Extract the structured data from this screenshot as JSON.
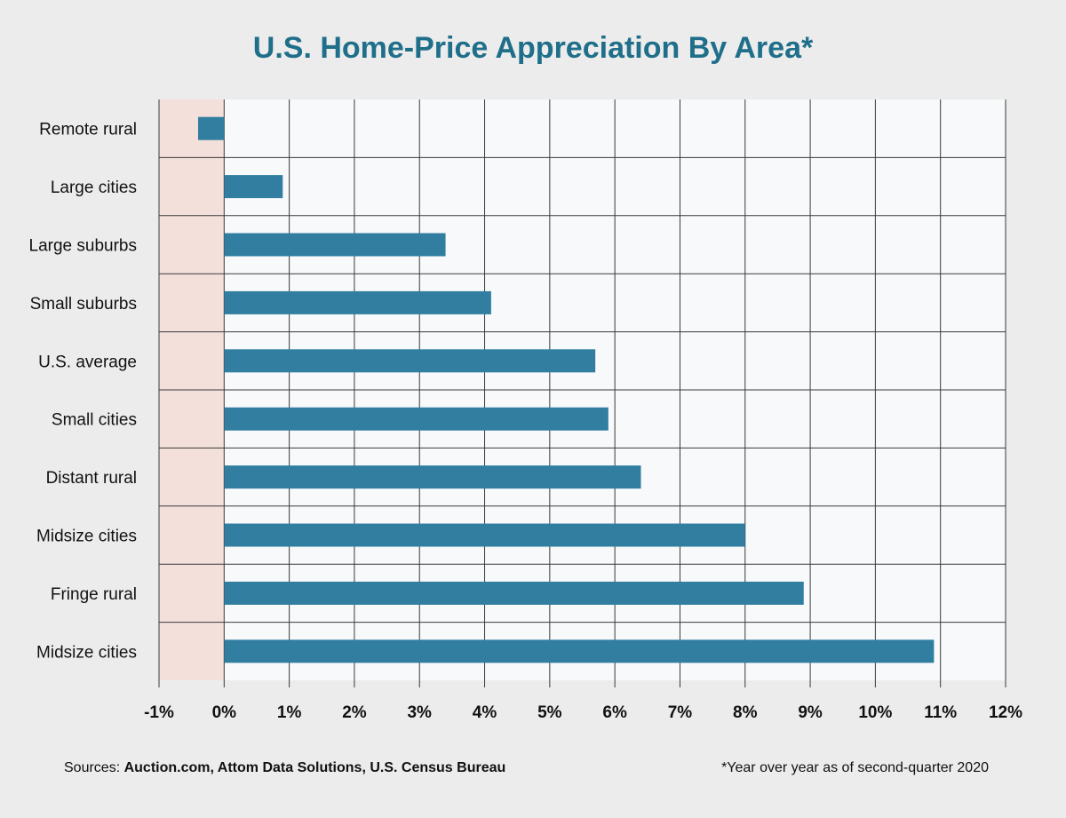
{
  "chart_data": {
    "type": "bar",
    "orientation": "horizontal",
    "title": "U.S. Home-Price Appreciation By Area*",
    "categories": [
      "Remote rural",
      "Large cities",
      "Large suburbs",
      "Small suburbs",
      "U.S. average",
      "Small cities",
      "Distant rural",
      "Midsize cities",
      "Fringe rural",
      "Midsize cities"
    ],
    "values": [
      -0.4,
      0.9,
      3.4,
      4.1,
      5.7,
      5.9,
      6.4,
      8.0,
      8.9,
      10.9
    ],
    "xlim": [
      -1,
      12
    ],
    "x_ticks": [
      -1,
      0,
      1,
      2,
      3,
      4,
      5,
      6,
      7,
      8,
      9,
      10,
      11,
      12
    ],
    "x_tick_labels": [
      "-1%",
      "0%",
      "1%",
      "2%",
      "3%",
      "4%",
      "5%",
      "6%",
      "7%",
      "8%",
      "9%",
      "10%",
      "11%",
      "12%"
    ],
    "grid": true,
    "colors": {
      "bar": "#317ea0",
      "negative_region": "#f3e0db",
      "plot_background": "#f8f9fb",
      "title": "#1f6f8b",
      "grid": "#3a3a3a"
    }
  },
  "footer": {
    "sources_prefix": "Sources: ",
    "sources": "Auction.com, Attom Data Solutions, U.S. Census Bureau",
    "note": "*Year over year as of second-quarter 2020"
  }
}
